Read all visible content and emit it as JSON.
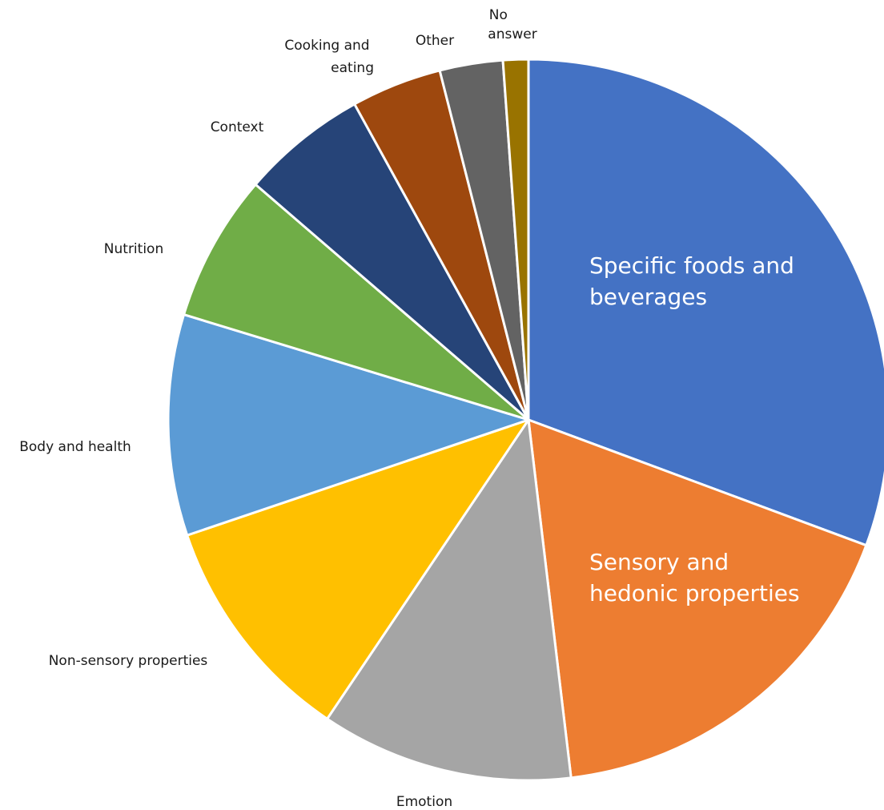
{
  "chart_data": {
    "type": "pie",
    "title": "",
    "start": "12 o'clock",
    "direction": "clockwise",
    "slices": [
      {
        "label": "Specific foods and beverages",
        "value": 32.5,
        "color": "#4472C4",
        "label_style": "inside"
      },
      {
        "label": "Sensory and hedonic properties",
        "value": 18.5,
        "color": "#ED7D31",
        "label_style": "inside"
      },
      {
        "label": "Emotion",
        "value": 12.0,
        "color": "#A5A5A5",
        "label_style": "outside"
      },
      {
        "label": "Non-sensory properties",
        "value": 11.0,
        "color": "#FFC000",
        "label_style": "outside"
      },
      {
        "label": "Body and health",
        "value": 10.5,
        "color": "#5B9BD5",
        "label_style": "outside"
      },
      {
        "label": "Nutrition",
        "value": 7.0,
        "color": "#70AD47",
        "label_style": "outside"
      },
      {
        "label": "Context",
        "value": 6.0,
        "color": "#264478",
        "label_style": "outside"
      },
      {
        "label": "Cooking and eating",
        "value": 4.3,
        "color": "#9E480E",
        "label_style": "outside"
      },
      {
        "label": "Other",
        "value": 3.0,
        "color": "#636363",
        "label_style": "outside"
      },
      {
        "label": "No answer",
        "value": 1.2,
        "color": "#997300",
        "label_style": "outside"
      }
    ]
  }
}
